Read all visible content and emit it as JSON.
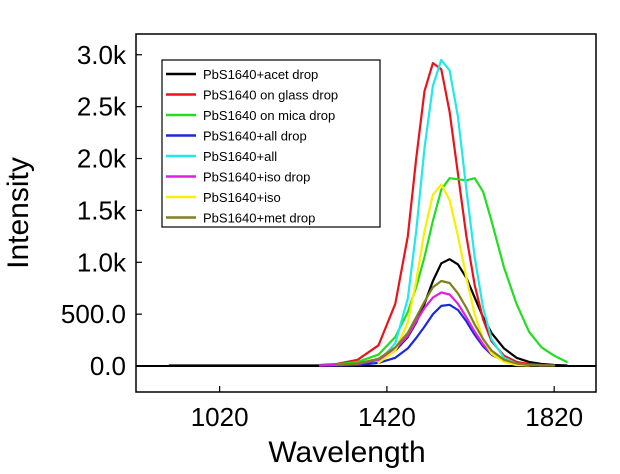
{
  "chart_data": {
    "type": "line",
    "title": "",
    "xlabel": "Wavelength",
    "ylabel": "Intensity",
    "xlim": [
      820,
      1920
    ],
    "ylim": [
      -250,
      3200
    ],
    "x_ticks": [
      1020,
      1420,
      1820
    ],
    "x_tick_labels": [
      "1020",
      "1420",
      "1820"
    ],
    "y_ticks": [
      0,
      500,
      1000,
      1500,
      2000,
      2500,
      3000
    ],
    "y_tick_labels": [
      "0.0",
      "500.0",
      "1.0k",
      "1.5k",
      "2.0k",
      "2.5k",
      "3.0k"
    ],
    "grid": false,
    "legend_position": "top-left",
    "x": [
      900,
      1000,
      1100,
      1200,
      1260,
      1300,
      1350,
      1400,
      1440,
      1470,
      1490,
      1510,
      1530,
      1550,
      1570,
      1590,
      1610,
      1630,
      1650,
      1670,
      1700,
      1730,
      1760,
      1790,
      1820,
      1850,
      1880
    ],
    "series": [
      {
        "name": "PbS1640+acet drop",
        "color": "#000000",
        "values": [
          5,
          5,
          5,
          5,
          5,
          10,
          20,
          60,
          150,
          280,
          420,
          600,
          820,
          990,
          1030,
          980,
          850,
          660,
          470,
          320,
          170,
          80,
          40,
          20,
          10,
          5,
          null
        ]
      },
      {
        "name": "PbS1640 on glass drop",
        "color": "#e8141c",
        "values": [
          null,
          null,
          null,
          null,
          10,
          20,
          60,
          200,
          600,
          1250,
          2000,
          2650,
          2920,
          2860,
          2450,
          1850,
          1250,
          780,
          450,
          240,
          100,
          40,
          20,
          10,
          5,
          null,
          null
        ]
      },
      {
        "name": "PbS1640 on mica drop",
        "color": "#22dd22",
        "values": [
          null,
          null,
          null,
          null,
          5,
          15,
          40,
          110,
          280,
          520,
          760,
          1050,
          1400,
          1700,
          1810,
          1800,
          1790,
          1810,
          1680,
          1400,
          950,
          600,
          330,
          180,
          100,
          40,
          null
        ]
      },
      {
        "name": "PbS1640+all drop",
        "color": "#1a2ad6",
        "values": [
          null,
          null,
          null,
          null,
          5,
          5,
          10,
          30,
          80,
          170,
          270,
          380,
          500,
          580,
          590,
          540,
          430,
          300,
          190,
          110,
          50,
          20,
          10,
          5,
          5,
          null,
          null
        ]
      },
      {
        "name": "PbS1640+all",
        "color": "#22e8e8",
        "values": [
          null,
          null,
          null,
          null,
          null,
          null,
          null,
          40,
          220,
          650,
          1300,
          2100,
          2700,
          2950,
          2850,
          2400,
          1700,
          1050,
          560,
          260,
          80,
          25,
          10,
          5,
          null,
          null,
          null
        ]
      },
      {
        "name": "PbS1640+iso drop",
        "color": "#e020e0",
        "values": [
          null,
          null,
          null,
          null,
          5,
          10,
          20,
          60,
          160,
          290,
          430,
          560,
          660,
          710,
          690,
          600,
          470,
          330,
          210,
          120,
          50,
          20,
          10,
          5,
          null,
          null,
          null
        ]
      },
      {
        "name": "PbS1640+iso",
        "color": "#f8f000",
        "values": [
          null,
          null,
          null,
          null,
          null,
          null,
          null,
          30,
          150,
          420,
          820,
          1300,
          1650,
          1750,
          1600,
          1250,
          850,
          500,
          260,
          120,
          40,
          10,
          5,
          null,
          null,
          null,
          null
        ]
      },
      {
        "name": "PbS1640+met drop",
        "color": "#808020",
        "values": [
          null,
          null,
          null,
          null,
          null,
          10,
          25,
          70,
          180,
          320,
          470,
          620,
          760,
          820,
          800,
          700,
          560,
          400,
          260,
          150,
          60,
          25,
          10,
          5,
          5,
          null,
          null
        ]
      }
    ]
  }
}
